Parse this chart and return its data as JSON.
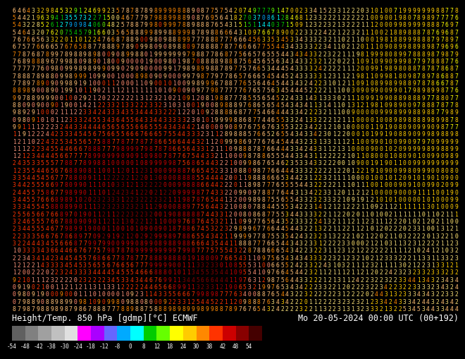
{
  "title_left": "Height/Temp. 850 hPa [gdmp][°C] ECMWF",
  "title_right": "Mo 20-05-2024 00:00 UTC (00+192)",
  "colorbar_colors": [
    "#606060",
    "#808080",
    "#a0a0a0",
    "#c0c0c0",
    "#e0e0e0",
    "#ff00ff",
    "#aa00ff",
    "#6666ff",
    "#00aaff",
    "#00ffff",
    "#00cc00",
    "#66ff00",
    "#ffff00",
    "#ffcc00",
    "#ff8800",
    "#ff3300",
    "#cc0000",
    "#880000",
    "#440000"
  ],
  "colorbar_tick_labels": [
    "-54",
    "-48",
    "-42",
    "-38",
    "-30",
    "-24",
    "-18",
    "-12",
    "-8",
    "0",
    "8",
    "12",
    "18",
    "24",
    "30",
    "38",
    "42",
    "48",
    "54"
  ],
  "bg_color": "#000000",
  "text_color": "#ffffff",
  "font_size_title": 8.5,
  "font_size_digits": 5.8,
  "rows": 42,
  "cols": 95
}
